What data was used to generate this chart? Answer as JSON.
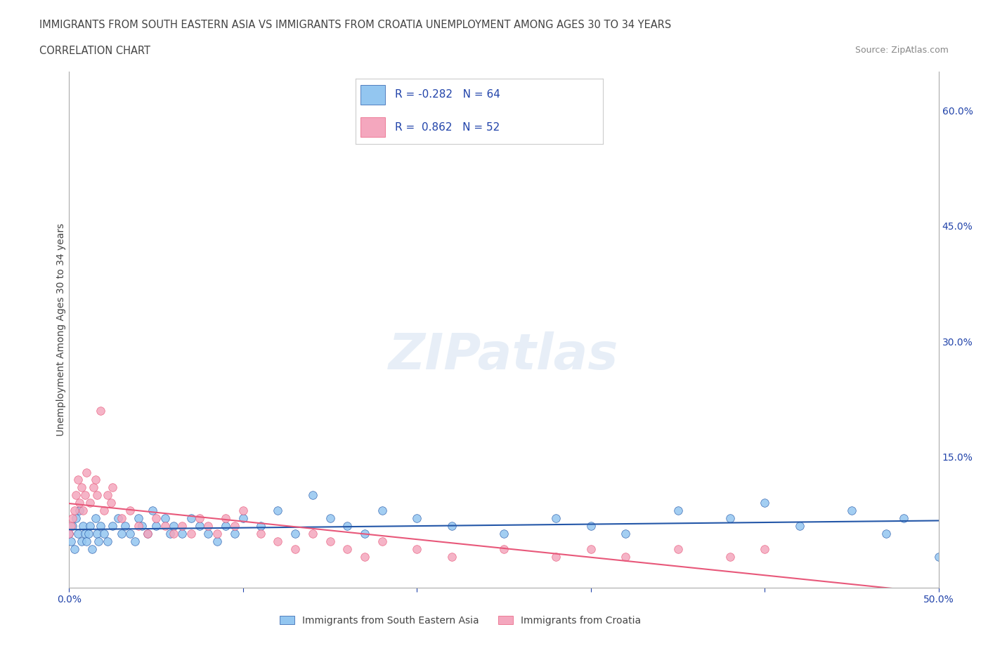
{
  "title_line1": "IMMIGRANTS FROM SOUTH EASTERN ASIA VS IMMIGRANTS FROM CROATIA UNEMPLOYMENT AMONG AGES 30 TO 34 YEARS",
  "title_line2": "CORRELATION CHART",
  "source_text": "Source: ZipAtlas.com",
  "xlabel": "",
  "ylabel": "Unemployment Among Ages 30 to 34 years",
  "xlim": [
    0.0,
    0.5
  ],
  "ylim": [
    -0.02,
    0.65
  ],
  "xtick_vals": [
    0.0,
    0.1,
    0.2,
    0.3,
    0.4,
    0.5
  ],
  "xtick_labels": [
    "0.0%",
    "",
    "",
    "",
    "",
    "50.0%"
  ],
  "ytick_vals": [
    0.0,
    0.15,
    0.3,
    0.45,
    0.6
  ],
  "ytick_labels": [
    "",
    "15.0%",
    "30.0%",
    "45.0%",
    "60.0%"
  ],
  "color_sea": "#93c6f0",
  "color_croatia": "#f4a7be",
  "line_color_sea": "#2457a8",
  "line_color_croatia": "#e8587a",
  "R_sea": -0.282,
  "N_sea": 64,
  "R_croatia": 0.862,
  "N_croatia": 52,
  "watermark": "ZIPatlas",
  "sea_x": [
    0.0,
    0.001,
    0.002,
    0.003,
    0.004,
    0.005,
    0.006,
    0.007,
    0.008,
    0.009,
    0.01,
    0.011,
    0.012,
    0.013,
    0.015,
    0.016,
    0.017,
    0.018,
    0.02,
    0.022,
    0.025,
    0.028,
    0.03,
    0.032,
    0.035,
    0.038,
    0.04,
    0.042,
    0.045,
    0.048,
    0.05,
    0.055,
    0.058,
    0.06,
    0.065,
    0.07,
    0.075,
    0.08,
    0.085,
    0.09,
    0.095,
    0.1,
    0.11,
    0.12,
    0.13,
    0.14,
    0.15,
    0.16,
    0.17,
    0.18,
    0.2,
    0.22,
    0.25,
    0.28,
    0.3,
    0.32,
    0.35,
    0.38,
    0.4,
    0.42,
    0.45,
    0.47,
    0.48,
    0.5
  ],
  "sea_y": [
    0.05,
    0.04,
    0.06,
    0.03,
    0.07,
    0.05,
    0.08,
    0.04,
    0.06,
    0.05,
    0.04,
    0.05,
    0.06,
    0.03,
    0.07,
    0.05,
    0.04,
    0.06,
    0.05,
    0.04,
    0.06,
    0.07,
    0.05,
    0.06,
    0.05,
    0.04,
    0.07,
    0.06,
    0.05,
    0.08,
    0.06,
    0.07,
    0.05,
    0.06,
    0.05,
    0.07,
    0.06,
    0.05,
    0.04,
    0.06,
    0.05,
    0.07,
    0.06,
    0.08,
    0.05,
    0.1,
    0.07,
    0.06,
    0.05,
    0.08,
    0.07,
    0.06,
    0.05,
    0.07,
    0.06,
    0.05,
    0.08,
    0.07,
    0.09,
    0.06,
    0.08,
    0.05,
    0.07,
    0.02
  ],
  "croatia_x": [
    0.0,
    0.001,
    0.002,
    0.003,
    0.004,
    0.005,
    0.006,
    0.007,
    0.008,
    0.009,
    0.01,
    0.012,
    0.014,
    0.015,
    0.016,
    0.018,
    0.02,
    0.022,
    0.024,
    0.025,
    0.03,
    0.035,
    0.04,
    0.045,
    0.05,
    0.055,
    0.06,
    0.065,
    0.07,
    0.075,
    0.08,
    0.085,
    0.09,
    0.095,
    0.1,
    0.11,
    0.12,
    0.13,
    0.14,
    0.15,
    0.16,
    0.17,
    0.18,
    0.2,
    0.22,
    0.25,
    0.28,
    0.3,
    0.32,
    0.35,
    0.38,
    0.4
  ],
  "croatia_y": [
    0.05,
    0.06,
    0.07,
    0.08,
    0.1,
    0.12,
    0.09,
    0.11,
    0.08,
    0.1,
    0.13,
    0.09,
    0.11,
    0.12,
    0.1,
    0.21,
    0.08,
    0.1,
    0.09,
    0.11,
    0.07,
    0.08,
    0.06,
    0.05,
    0.07,
    0.06,
    0.05,
    0.06,
    0.05,
    0.07,
    0.06,
    0.05,
    0.07,
    0.06,
    0.08,
    0.05,
    0.04,
    0.03,
    0.05,
    0.04,
    0.03,
    0.02,
    0.04,
    0.03,
    0.02,
    0.03,
    0.02,
    0.03,
    0.02,
    0.03,
    0.02,
    0.03
  ]
}
